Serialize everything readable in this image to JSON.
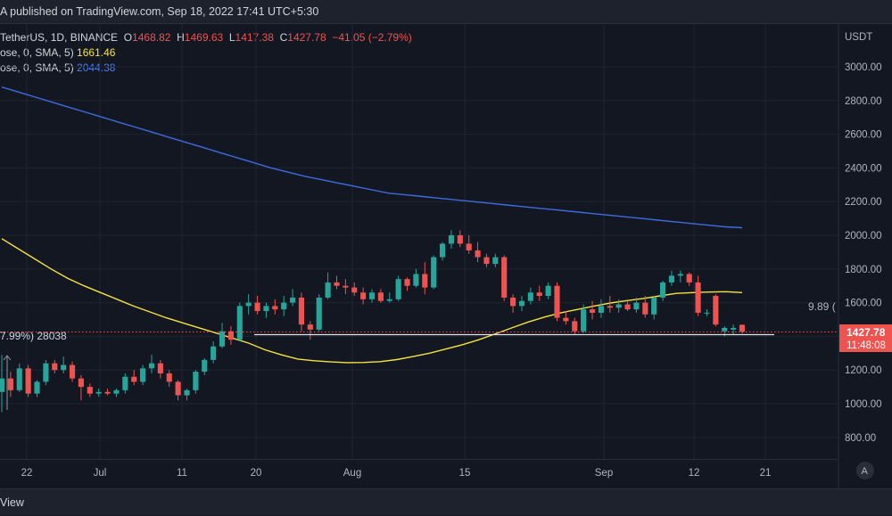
{
  "header": {
    "published_text": "A published on TradingView.com, Sep 18, 2022 17:41 UTC+5:30"
  },
  "footer": {
    "text": "View"
  },
  "legend": {
    "symbol": "TetherUS, 1D, BINANCE",
    "open_label": "O",
    "open": "1468.82",
    "high_label": "H",
    "high": "1469.63",
    "low_label": "L",
    "low": "1417.38",
    "close_label": "C",
    "close": "1427.78",
    "change": "−41.05 (−2.79%)",
    "ma1_label": "ose, 0, SMA, 5)",
    "ma1_value": "1661.46",
    "ma2_label": "ose, 0, SMA, 5)",
    "ma2_value": "2044.38"
  },
  "annotations": {
    "left_text": "7.99%) 28038",
    "right_text": "9.89 ("
  },
  "price_tag": {
    "price": "1427.78",
    "countdown": "11:48:08"
  },
  "auto_button": "A",
  "colors": {
    "bg": "#131722",
    "up": "#26a69a",
    "down": "#ef5350",
    "ma_short": "#f5e33f",
    "ma_long": "#3d6be0",
    "grid": "#1f2431"
  },
  "chart_data": {
    "type": "line",
    "currency_label": "USDT",
    "y_ticks": [
      "3000.00",
      "2800.00",
      "2600.00",
      "2400.00",
      "2200.00",
      "2000.00",
      "1800.00",
      "1600.00",
      "1400.00",
      "1200.00",
      "1000.00",
      "800.00"
    ],
    "ylim": [
      700,
      3350
    ],
    "x_ticks": [
      "22",
      "Jul",
      "11",
      "20",
      "Aug",
      "15",
      "Sep",
      "12",
      "21"
    ],
    "candles": [
      {
        "o": 1070,
        "h": 1290,
        "l": 950,
        "c": 1150
      },
      {
        "o": 1150,
        "h": 1190,
        "l": 1040,
        "c": 1080
      },
      {
        "o": 1080,
        "h": 1240,
        "l": 1070,
        "c": 1210
      },
      {
        "o": 1210,
        "h": 1230,
        "l": 1040,
        "c": 1060
      },
      {
        "o": 1060,
        "h": 1140,
        "l": 1040,
        "c": 1130
      },
      {
        "o": 1130,
        "h": 1260,
        "l": 1110,
        "c": 1240
      },
      {
        "o": 1240,
        "h": 1260,
        "l": 1180,
        "c": 1200
      },
      {
        "o": 1200,
        "h": 1280,
        "l": 1180,
        "c": 1230
      },
      {
        "o": 1230,
        "h": 1250,
        "l": 1130,
        "c": 1150
      },
      {
        "o": 1150,
        "h": 1170,
        "l": 1020,
        "c": 1100
      },
      {
        "o": 1100,
        "h": 1120,
        "l": 1040,
        "c": 1060
      },
      {
        "o": 1060,
        "h": 1090,
        "l": 1040,
        "c": 1070
      },
      {
        "o": 1070,
        "h": 1090,
        "l": 1050,
        "c": 1060
      },
      {
        "o": 1060,
        "h": 1090,
        "l": 1040,
        "c": 1080
      },
      {
        "o": 1080,
        "h": 1180,
        "l": 1060,
        "c": 1160
      },
      {
        "o": 1160,
        "h": 1200,
        "l": 1110,
        "c": 1130
      },
      {
        "o": 1130,
        "h": 1230,
        "l": 1110,
        "c": 1210
      },
      {
        "o": 1210,
        "h": 1290,
        "l": 1180,
        "c": 1240
      },
      {
        "o": 1240,
        "h": 1260,
        "l": 1150,
        "c": 1180
      },
      {
        "o": 1180,
        "h": 1200,
        "l": 1100,
        "c": 1130
      },
      {
        "o": 1130,
        "h": 1140,
        "l": 1020,
        "c": 1050
      },
      {
        "o": 1050,
        "h": 1090,
        "l": 1020,
        "c": 1080
      },
      {
        "o": 1080,
        "h": 1200,
        "l": 1060,
        "c": 1190
      },
      {
        "o": 1190,
        "h": 1270,
        "l": 1170,
        "c": 1260
      },
      {
        "o": 1260,
        "h": 1370,
        "l": 1240,
        "c": 1340
      },
      {
        "o": 1340,
        "h": 1480,
        "l": 1330,
        "c": 1430
      },
      {
        "o": 1430,
        "h": 1460,
        "l": 1350,
        "c": 1380
      },
      {
        "o": 1380,
        "h": 1600,
        "l": 1370,
        "c": 1580
      },
      {
        "o": 1580,
        "h": 1650,
        "l": 1530,
        "c": 1600
      },
      {
        "o": 1600,
        "h": 1640,
        "l": 1530,
        "c": 1550
      },
      {
        "o": 1550,
        "h": 1600,
        "l": 1510,
        "c": 1580
      },
      {
        "o": 1580,
        "h": 1620,
        "l": 1530,
        "c": 1560
      },
      {
        "o": 1560,
        "h": 1640,
        "l": 1520,
        "c": 1600
      },
      {
        "o": 1600,
        "h": 1680,
        "l": 1580,
        "c": 1630
      },
      {
        "o": 1630,
        "h": 1660,
        "l": 1430,
        "c": 1470
      },
      {
        "o": 1470,
        "h": 1490,
        "l": 1380,
        "c": 1440
      },
      {
        "o": 1440,
        "h": 1650,
        "l": 1430,
        "c": 1630
      },
      {
        "o": 1630,
        "h": 1780,
        "l": 1620,
        "c": 1720
      },
      {
        "o": 1720,
        "h": 1760,
        "l": 1680,
        "c": 1700
      },
      {
        "o": 1700,
        "h": 1740,
        "l": 1650,
        "c": 1690
      },
      {
        "o": 1690,
        "h": 1720,
        "l": 1640,
        "c": 1660
      },
      {
        "o": 1660,
        "h": 1690,
        "l": 1590,
        "c": 1620
      },
      {
        "o": 1620,
        "h": 1680,
        "l": 1600,
        "c": 1660
      },
      {
        "o": 1660,
        "h": 1680,
        "l": 1600,
        "c": 1610
      },
      {
        "o": 1610,
        "h": 1660,
        "l": 1600,
        "c": 1620
      },
      {
        "o": 1620,
        "h": 1760,
        "l": 1610,
        "c": 1740
      },
      {
        "o": 1740,
        "h": 1750,
        "l": 1670,
        "c": 1700
      },
      {
        "o": 1700,
        "h": 1800,
        "l": 1690,
        "c": 1770
      },
      {
        "o": 1770,
        "h": 1840,
        "l": 1650,
        "c": 1690
      },
      {
        "o": 1690,
        "h": 1880,
        "l": 1680,
        "c": 1870
      },
      {
        "o": 1870,
        "h": 1960,
        "l": 1850,
        "c": 1950
      },
      {
        "o": 1950,
        "h": 2030,
        "l": 1920,
        "c": 2000
      },
      {
        "o": 2000,
        "h": 2030,
        "l": 1930,
        "c": 1950
      },
      {
        "o": 1950,
        "h": 2000,
        "l": 1890,
        "c": 1910
      },
      {
        "o": 1910,
        "h": 1960,
        "l": 1840,
        "c": 1870
      },
      {
        "o": 1870,
        "h": 1890,
        "l": 1810,
        "c": 1830
      },
      {
        "o": 1830,
        "h": 1890,
        "l": 1810,
        "c": 1870
      },
      {
        "o": 1870,
        "h": 1880,
        "l": 1610,
        "c": 1630
      },
      {
        "o": 1630,
        "h": 1650,
        "l": 1540,
        "c": 1580
      },
      {
        "o": 1580,
        "h": 1640,
        "l": 1550,
        "c": 1610
      },
      {
        "o": 1610,
        "h": 1690,
        "l": 1590,
        "c": 1660
      },
      {
        "o": 1660,
        "h": 1700,
        "l": 1610,
        "c": 1640
      },
      {
        "o": 1640,
        "h": 1720,
        "l": 1620,
        "c": 1700
      },
      {
        "o": 1700,
        "h": 1720,
        "l": 1490,
        "c": 1510
      },
      {
        "o": 1510,
        "h": 1550,
        "l": 1470,
        "c": 1490
      },
      {
        "o": 1490,
        "h": 1510,
        "l": 1410,
        "c": 1430
      },
      {
        "o": 1430,
        "h": 1590,
        "l": 1420,
        "c": 1560
      },
      {
        "o": 1560,
        "h": 1610,
        "l": 1500,
        "c": 1540
      },
      {
        "o": 1540,
        "h": 1620,
        "l": 1510,
        "c": 1580
      },
      {
        "o": 1580,
        "h": 1640,
        "l": 1540,
        "c": 1570
      },
      {
        "o": 1570,
        "h": 1620,
        "l": 1540,
        "c": 1590
      },
      {
        "o": 1590,
        "h": 1610,
        "l": 1550,
        "c": 1560
      },
      {
        "o": 1560,
        "h": 1630,
        "l": 1540,
        "c": 1600
      },
      {
        "o": 1600,
        "h": 1640,
        "l": 1510,
        "c": 1530
      },
      {
        "o": 1530,
        "h": 1640,
        "l": 1500,
        "c": 1630
      },
      {
        "o": 1630,
        "h": 1730,
        "l": 1610,
        "c": 1720
      },
      {
        "o": 1720,
        "h": 1790,
        "l": 1700,
        "c": 1760
      },
      {
        "o": 1760,
        "h": 1790,
        "l": 1720,
        "c": 1770
      },
      {
        "o": 1770,
        "h": 1780,
        "l": 1700,
        "c": 1720
      },
      {
        "o": 1720,
        "h": 1760,
        "l": 1520,
        "c": 1540
      },
      {
        "o": 1540,
        "h": 1560,
        "l": 1520,
        "c": 1540
      },
      {
        "o": 1640,
        "h": 1650,
        "l": 1460,
        "c": 1470
      },
      {
        "o": 1430,
        "h": 1460,
        "l": 1400,
        "c": 1450
      },
      {
        "o": 1440,
        "h": 1470,
        "l": 1410,
        "c": 1450
      },
      {
        "o": 1468.82,
        "h": 1469.63,
        "l": 1417.38,
        "c": 1427.78
      }
    ],
    "ma_short": [
      1980,
      1920,
      1860,
      1800,
      1745,
      1700,
      1660,
      1620,
      1580,
      1545,
      1510,
      1480,
      1450,
      1420,
      1390,
      1360,
      1320,
      1290,
      1265,
      1255,
      1248,
      1244,
      1245,
      1250,
      1262,
      1280,
      1300,
      1325,
      1350,
      1380,
      1415,
      1450,
      1485,
      1515,
      1540,
      1560,
      1580,
      1598,
      1612,
      1625,
      1640,
      1655,
      1660,
      1663,
      1665,
      1660
    ],
    "ma_long": [
      2880,
      2850,
      2820,
      2790,
      2760,
      2730,
      2700,
      2670,
      2640,
      2610,
      2580,
      2550,
      2520,
      2490,
      2460,
      2430,
      2400,
      2375,
      2350,
      2330,
      2310,
      2290,
      2270,
      2250,
      2240,
      2230,
      2220,
      2210,
      2200,
      2190,
      2180,
      2170,
      2160,
      2150,
      2140,
      2130,
      2120,
      2110,
      2100,
      2090,
      2080,
      2070,
      2060,
      2050,
      2045
    ]
  }
}
